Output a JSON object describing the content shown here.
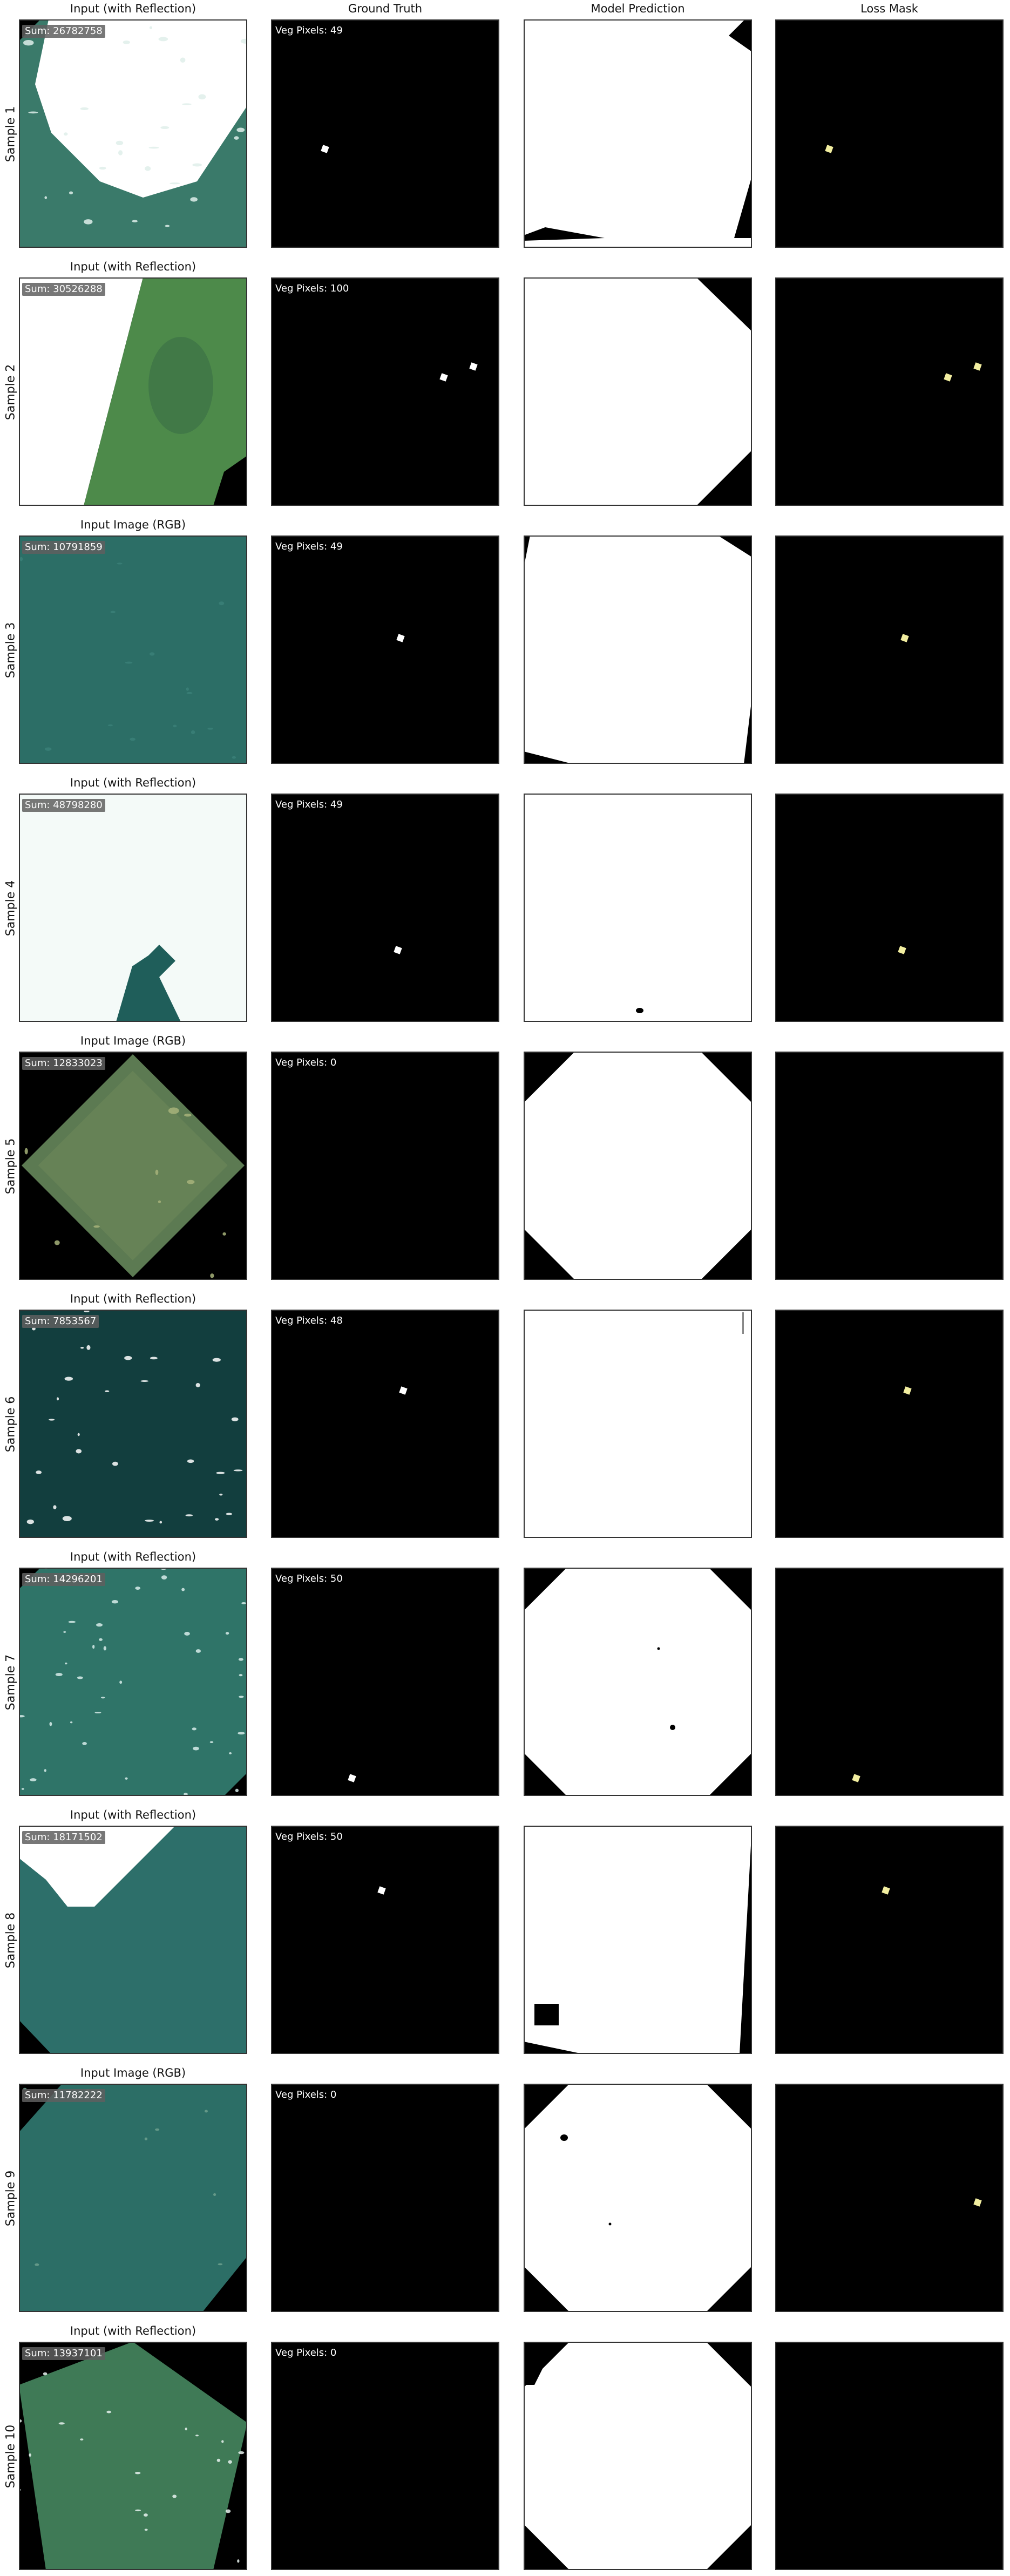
{
  "columns": [
    "Input (with Reflection)",
    "Ground Truth",
    "Model Prediction",
    "Loss Mask"
  ],
  "samples": [
    {
      "label": "Sample 1",
      "input_title": "Input (with Reflection)",
      "sum": "Sum: 26782758",
      "veg": "Veg Pixels: 49"
    },
    {
      "label": "Sample 2",
      "input_title": "Input (with Reflection)",
      "sum": "Sum: 30526288",
      "veg": "Veg Pixels: 100"
    },
    {
      "label": "Sample 3",
      "input_title": "Input Image (RGB)",
      "sum": "Sum: 10791859",
      "veg": "Veg Pixels: 49"
    },
    {
      "label": "Sample 4",
      "input_title": "Input (with Reflection)",
      "sum": "Sum: 48798280",
      "veg": "Veg Pixels: 49"
    },
    {
      "label": "Sample 5",
      "input_title": "Input Image (RGB)",
      "sum": "Sum: 12833023",
      "veg": "Veg Pixels: 0"
    },
    {
      "label": "Sample 6",
      "input_title": "Input (with Reflection)",
      "sum": "Sum: 7853567",
      "veg": "Veg Pixels: 48"
    },
    {
      "label": "Sample 7",
      "input_title": "Input (with Reflection)",
      "sum": "Sum: 14296201",
      "veg": "Veg Pixels: 50"
    },
    {
      "label": "Sample 8",
      "input_title": "Input (with Reflection)",
      "sum": "Sum: 18171502",
      "veg": "Veg Pixels: 50"
    },
    {
      "label": "Sample 9",
      "input_title": "Input Image (RGB)",
      "sum": "Sum: 11782222",
      "veg": "Veg Pixels: 0"
    },
    {
      "label": "Sample 10",
      "input_title": "Input (with Reflection)",
      "sum": "Sum: 13937101",
      "veg": "Veg Pixels: 0"
    }
  ],
  "colors": {
    "mask_background": "#000000",
    "mask_foreground": "#ffffff",
    "loss_marker": "#f2eea0",
    "water_teal": "#2c6e66",
    "vegetation_green": "#4d8a4a"
  }
}
